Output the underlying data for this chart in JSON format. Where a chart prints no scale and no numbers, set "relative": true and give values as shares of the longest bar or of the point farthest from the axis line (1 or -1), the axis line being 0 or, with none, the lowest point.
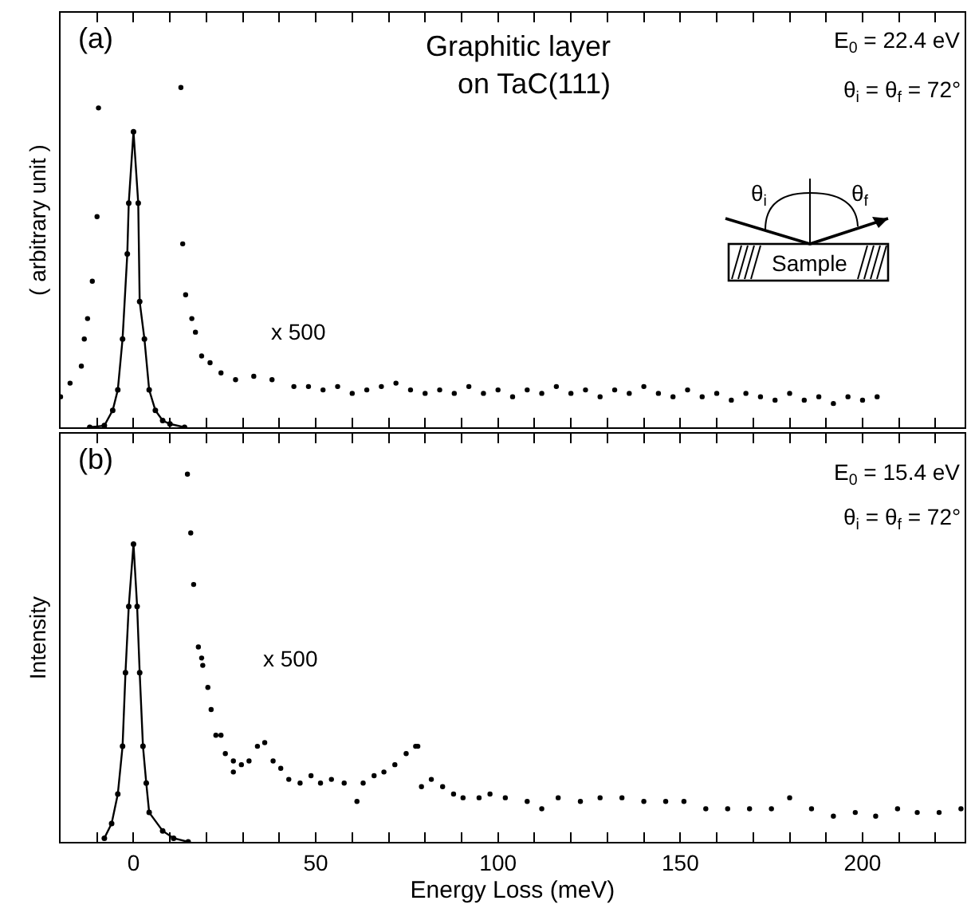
{
  "chart_data": [
    {
      "type": "line",
      "title": "(a)",
      "subtitle": "Graphitic layer\non TaC(111)",
      "ylabel": "( arbitrary unit )",
      "relative": true,
      "tick_labels": false,
      "marker": "circle",
      "line_style": "solid",
      "xlim": [
        -20,
        228
      ],
      "xticks": [
        {
          "value": -10,
          "label": null
        },
        0,
        {
          "value": 10,
          "label": null
        },
        {
          "value": 20,
          "label": null
        },
        {
          "value": 30,
          "label": null
        },
        {
          "value": 40,
          "label": null
        },
        50,
        {
          "value": 60,
          "label": null
        },
        {
          "value": 70,
          "label": null
        },
        {
          "value": 80,
          "label": null
        },
        {
          "value": 90,
          "label": null
        },
        100,
        {
          "value": 110,
          "label": null
        },
        {
          "value": 120,
          "label": null
        },
        {
          "value": 130,
          "label": null
        },
        {
          "value": 140,
          "label": null
        },
        150,
        {
          "value": 160,
          "label": null
        },
        {
          "value": 170,
          "label": null
        },
        {
          "value": 180,
          "label": null
        },
        {
          "value": 190,
          "label": null
        },
        200,
        {
          "value": 210,
          "label": null
        },
        {
          "value": 220,
          "label": null
        }
      ],
      "annotations": [
        "E$_{0}$ = 22.4 eV",
        "θ$_{i}$ = θ$_{f}$ = 72°",
        "θ$_{i}$",
        "θ$_{f}$",
        "Sample",
        "x 500"
      ],
      "series": [
        {
          "color": "#000000",
          "x": [
            -12,
            -8,
            -5.7,
            -4.3,
            -3,
            -1.7,
            -1.3,
            0,
            1.3,
            1.7,
            3,
            4.3,
            6,
            8,
            10,
            14
          ],
          "values": [
            0,
            0.005,
            0.05,
            0.11,
            0.26,
            0.51,
            0.66,
            0.87,
            0.66,
            0.37,
            0.26,
            0.11,
            0.05,
            0.02,
            0.01,
            0
          ]
        },
        {
          "type": "scatter",
          "color": "#000000",
          "x": [
            -20,
            -17.4,
            -14.3,
            -13.5,
            -12.6,
            -11.3,
            -10,
            -9.6,
            13,
            13.5,
            14.3,
            16,
            17,
            18.7,
            21,
            24,
            28,
            33,
            38,
            44,
            48,
            52,
            56,
            60,
            64,
            68,
            72,
            76,
            80,
            84,
            88,
            92,
            96,
            100,
            104,
            108,
            112,
            116,
            120,
            124,
            128,
            132,
            136,
            140,
            144,
            148,
            152,
            156,
            160,
            164,
            168,
            172,
            176,
            180,
            184,
            188,
            192,
            196,
            200,
            204
          ],
          "values": [
            0.09,
            0.13,
            0.18,
            0.26,
            0.32,
            0.43,
            0.62,
            0.94,
            1,
            0.54,
            0.39,
            0.32,
            0.28,
            0.21,
            0.19,
            0.16,
            0.14,
            0.15,
            0.14,
            0.12,
            0.12,
            0.11,
            0.12,
            0.1,
            0.11,
            0.12,
            0.13,
            0.11,
            0.1,
            0.11,
            0.1,
            0.12,
            0.1,
            0.11,
            0.09,
            0.11,
            0.1,
            0.12,
            0.1,
            0.11,
            0.09,
            0.11,
            0.1,
            0.12,
            0.1,
            0.09,
            0.11,
            0.09,
            0.1,
            0.08,
            0.1,
            0.09,
            0.08,
            0.1,
            0.08,
            0.09,
            0.07,
            0.09,
            0.08,
            0.09
          ]
        }
      ]
    },
    {
      "type": "line",
      "title": "(b)",
      "xlabel": "Energy Loss (meV)",
      "ylabel": "Intensity",
      "relative": true,
      "tick_labels": "x",
      "marker": "circle",
      "line_style": "solid",
      "xlim": [
        -20,
        228
      ],
      "xticks": [
        {
          "value": -10,
          "label": null
        },
        0,
        {
          "value": 10,
          "label": null
        },
        {
          "value": 20,
          "label": null
        },
        {
          "value": 30,
          "label": null
        },
        {
          "value": 40,
          "label": null
        },
        50,
        {
          "value": 60,
          "label": null
        },
        {
          "value": 70,
          "label": null
        },
        {
          "value": 80,
          "label": null
        },
        {
          "value": 90,
          "label": null
        },
        100,
        {
          "value": 110,
          "label": null
        },
        {
          "value": 120,
          "label": null
        },
        {
          "value": 130,
          "label": null
        },
        {
          "value": 140,
          "label": null
        },
        150,
        {
          "value": 160,
          "label": null
        },
        {
          "value": 170,
          "label": null
        },
        {
          "value": 180,
          "label": null
        },
        {
          "value": 190,
          "label": null
        },
        200,
        {
          "value": 210,
          "label": null
        },
        {
          "value": 220,
          "label": null
        }
      ],
      "annotations": [
        "E$_{0}$ = 15.4 eV",
        "θ$_{i}$ = θ$_{f}$ = 72°",
        "x 500"
      ],
      "series": [
        {
          "color": "#000000",
          "x": [
            -8,
            -6,
            -4.3,
            -3,
            -2.2,
            -1.3,
            0,
            1,
            1.7,
            2.6,
            3.5,
            4.3,
            8,
            11,
            15
          ],
          "values": [
            0.01,
            0.05,
            0.13,
            0.26,
            0.46,
            0.64,
            0.81,
            0.64,
            0.46,
            0.26,
            0.16,
            0.08,
            0.03,
            0.01,
            0
          ]
        },
        {
          "type": "scatter",
          "color": "#000000",
          "x": [
            14.8,
            15.7,
            16.5,
            17.8,
            18.7,
            19,
            20.4,
            21.3,
            22.6,
            24,
            25.2,
            27.4,
            27.4,
            29.6,
            31.7,
            34,
            36,
            38.3,
            40.4,
            42.6,
            45.7,
            48.7,
            51.3,
            54.3,
            57.8,
            61.3,
            63,
            66,
            68.7,
            71.7,
            74.8,
            77.4,
            78,
            79,
            81.7,
            84.8,
            87.8,
            90.4,
            94.8,
            97.8,
            102,
            108,
            112,
            116.5,
            122.6,
            128,
            134,
            140,
            146,
            151,
            157,
            163,
            169,
            175,
            180,
            186,
            192,
            198,
            203.6,
            209.6,
            215,
            221,
            227
          ],
          "values": [
            1,
            0.84,
            0.7,
            0.53,
            0.5,
            0.48,
            0.42,
            0.36,
            0.29,
            0.29,
            0.24,
            0.22,
            0.19,
            0.21,
            0.22,
            0.26,
            0.27,
            0.22,
            0.2,
            0.17,
            0.16,
            0.18,
            0.16,
            0.17,
            0.16,
            0.11,
            0.16,
            0.18,
            0.19,
            0.21,
            0.24,
            0.26,
            0.26,
            0.15,
            0.17,
            0.15,
            0.13,
            0.12,
            0.12,
            0.13,
            0.12,
            0.11,
            0.09,
            0.12,
            0.11,
            0.12,
            0.12,
            0.11,
            0.11,
            0.11,
            0.09,
            0.09,
            0.09,
            0.09,
            0.12,
            0.09,
            0.07,
            0.08,
            0.07,
            0.09,
            0.08,
            0.08,
            0.09
          ]
        }
      ]
    }
  ]
}
